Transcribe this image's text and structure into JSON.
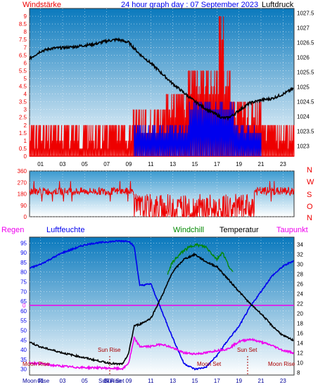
{
  "header": {
    "left_label": "Windstärke",
    "center_title": "24 hour graph day : 07 September 2023",
    "right_label": "Luftdruck"
  },
  "colors": {
    "red": "#ee0000",
    "blue": "#0000ee",
    "black": "#000000",
    "green": "#008800",
    "magenta": "#ee00ee",
    "darkred": "#aa0000",
    "navy": "#000099",
    "plot_top": "#0a79bd",
    "plot_bottom": "#ffffff"
  },
  "chart_data": [
    {
      "type": "bar",
      "description_ref": "top panel: wind speed (Beaufort) and pressure",
      "y_left_ticks": [
        "0",
        "0.5",
        "1",
        "1.5",
        "2",
        "2.5",
        "3",
        "3.5",
        "4",
        "4.5",
        "5",
        "5.5",
        "6",
        "6.5",
        "7",
        "7.5",
        "8",
        "8.5",
        "9"
      ],
      "y_left_range": [
        0,
        9.5
      ],
      "y_right_ticks": [
        "1023",
        "1023.5",
        "1024",
        "1024.5",
        "1025",
        "1025.5",
        "1026",
        "1026.5",
        "1027",
        "1027.5"
      ],
      "y_right_range": [
        1022.65,
        1027.65
      ],
      "x_ticks": [
        "01",
        "03",
        "05",
        "07",
        "09",
        "11",
        "13",
        "15",
        "17",
        "19",
        "21",
        "23"
      ],
      "x_range_hours": [
        0,
        24
      ],
      "pressure": {
        "x": [
          0,
          1,
          2,
          3,
          4,
          5,
          6,
          7,
          8,
          9,
          10,
          11,
          12,
          13,
          14,
          15,
          16,
          17,
          17.5,
          18,
          18.5,
          19,
          20,
          21,
          22,
          23,
          24
        ],
        "y": [
          1025.95,
          1026.2,
          1026.3,
          1026.32,
          1026.35,
          1026.4,
          1026.45,
          1026.55,
          1026.6,
          1026.5,
          1026.1,
          1025.8,
          1025.45,
          1025.1,
          1024.8,
          1024.5,
          1024.25,
          1024.05,
          1023.95,
          1023.95,
          1024.05,
          1024.2,
          1024.45,
          1024.55,
          1024.6,
          1024.75,
          1024.95
        ]
      },
      "gust_segments": [
        {
          "start": 0,
          "end": 9.4,
          "level": 2
        },
        {
          "start": 9.4,
          "end": 12.4,
          "level": 3
        },
        {
          "start": 12.4,
          "end": 14.4,
          "level": 4
        },
        {
          "start": 14.4,
          "end": 18.2,
          "level": 5.5
        },
        {
          "start": 17.2,
          "end": 17.6,
          "level": 9
        },
        {
          "start": 18.2,
          "end": 21,
          "level": 3.5
        },
        {
          "start": 21,
          "end": 24,
          "level": 2
        }
      ],
      "avg_segments": [
        {
          "start": 9.5,
          "end": 14.5,
          "level": 2
        },
        {
          "start": 14.5,
          "end": 18.5,
          "level": 3.5
        },
        {
          "start": 18.5,
          "end": 21,
          "level": 2
        }
      ]
    },
    {
      "type": "line",
      "description_ref": "middle panel: wind direction",
      "y_ticks": [
        "0",
        "90",
        "180",
        "270",
        "360"
      ],
      "y_range": [
        0,
        360
      ],
      "right_letters": [
        "N",
        "W",
        "S",
        "O",
        "N"
      ],
      "x_range_hours": [
        0,
        24
      ],
      "segments": [
        {
          "start": 0,
          "end": 9.5,
          "base": 200,
          "jitter": 30
        },
        {
          "start": 9.5,
          "end": 20.4,
          "base": 60,
          "jitter": 120
        },
        {
          "start": 20.4,
          "end": 24,
          "base": 200,
          "jitter": 35
        }
      ]
    },
    {
      "type": "line",
      "description_ref": "bottom panel: humidity, temperature, windchill, dew point",
      "left_title": "Regen",
      "humidity_title": "Luftfeuchte",
      "windchill_title": "Windchill",
      "temperature_title": "Temperatur",
      "dewpoint_title": "Taupunkt",
      "y_left_ticks": [
        "30",
        "35",
        "40",
        "45",
        "50",
        "55",
        "60",
        "65",
        "70",
        "75",
        "80",
        "85",
        "90",
        "95"
      ],
      "y_left_range": [
        27,
        98
      ],
      "y_right_ticks": [
        "8",
        "10",
        "12",
        "14",
        "16",
        "18",
        "20",
        "22",
        "24",
        "26",
        "28",
        "30",
        "32",
        "34"
      ],
      "y_right_range": [
        7.5,
        35.5
      ],
      "rain_zero_label": "0",
      "x_ticks": [
        "01",
        "03",
        "05",
        "07",
        "09",
        "11",
        "13",
        "15",
        "17",
        "19",
        "21",
        "23"
      ],
      "x_range_hours": [
        0,
        24
      ],
      "humidity": {
        "x": [
          0,
          1,
          2,
          3,
          4,
          5,
          6,
          7,
          8,
          9,
          9.5,
          10,
          11,
          12,
          13,
          14,
          15,
          16,
          17,
          18,
          19,
          20,
          21,
          22,
          23,
          24
        ],
        "y": [
          82,
          84,
          87,
          90,
          92,
          94,
          95,
          95.5,
          96,
          96,
          93,
          73,
          74,
          60,
          46,
          33,
          30,
          31,
          37,
          45,
          52,
          62,
          70,
          78,
          83,
          86
        ]
      },
      "temperature": {
        "x": [
          0,
          1,
          2,
          3,
          4,
          5,
          6,
          7,
          8,
          8.5,
          9,
          9.5,
          10,
          11,
          12,
          13,
          14,
          15,
          16,
          17,
          18,
          19,
          20,
          21,
          22,
          23,
          24
        ],
        "y": [
          14.2,
          13.2,
          12.6,
          12,
          11.5,
          11,
          10.5,
          10,
          9.7,
          9.8,
          12,
          17.5,
          17.8,
          19,
          23.5,
          28.5,
          31,
          32,
          30.5,
          29.5,
          27,
          24.5,
          22,
          20,
          17.5,
          15.5,
          14.5
        ]
      },
      "windchill": {
        "x": [
          12.5,
          13,
          14,
          15,
          16,
          17,
          17.5,
          18,
          18.5
        ],
        "y": [
          28,
          30.5,
          32.8,
          34,
          33.5,
          31,
          32.5,
          30,
          28
        ]
      },
      "dewpoint": {
        "x": [
          0,
          1,
          2,
          3,
          4,
          5,
          6,
          7,
          8,
          8.5,
          9,
          9.5,
          10,
          11,
          12,
          13,
          14,
          15,
          16,
          17,
          18,
          19,
          20,
          21,
          22,
          23,
          24
        ],
        "y": [
          10,
          9.8,
          9.5,
          9.3,
          9.1,
          9,
          9,
          8.9,
          8.8,
          8.8,
          10,
          15,
          13.3,
          13.3,
          13.8,
          13,
          12,
          11.8,
          12,
          12.5,
          12.8,
          14.3,
          14.8,
          14.2,
          13.5,
          12.5,
          12
        ]
      },
      "annotations": {
        "sun_rise": "Sun Rise",
        "sun_set": "Sun Set",
        "moon_rise_left": "Moon Rise",
        "moon_set": "Moon Set",
        "moon_rise_right": "Moon Rise",
        "bottom_moon_rise": "Moon Rise",
        "bottom_sun_rise": "Sun Rise",
        "bottom_sun_set": "Sun Set"
      }
    }
  ]
}
